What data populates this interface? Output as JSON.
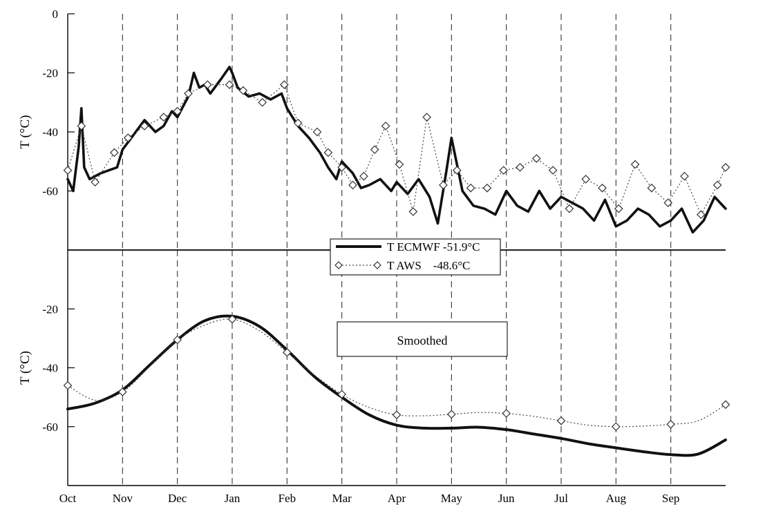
{
  "chart_data": [
    {
      "type": "line",
      "panel": "top",
      "ylabel": "T (°C)",
      "xlabel": "",
      "ylim": [
        -80,
        0
      ],
      "y_ticks": [
        0,
        -20,
        -40,
        -60
      ],
      "x_ticks": [
        "Oct",
        "Nov",
        "Dec",
        "Jan",
        "Feb",
        "Mar",
        "Apr",
        "May",
        "Jun",
        "Jul",
        "Aug",
        "Sep"
      ],
      "x_range_months": [
        0,
        12
      ],
      "grid": "vertical dashed lines at month starts",
      "legend": {
        "placement": "bottom-center",
        "entries": [
          "T ECMWF -51.9°C",
          "T AWS    -48.6°C"
        ]
      },
      "series": [
        {
          "name": "T ECMWF -51.9°C",
          "style": "solid-thick",
          "x": [
            0,
            0.1,
            0.2,
            0.25,
            0.3,
            0.4,
            0.5,
            0.6,
            0.75,
            0.9,
            1.0,
            1.2,
            1.4,
            1.6,
            1.75,
            1.9,
            2.0,
            2.2,
            2.3,
            2.4,
            2.5,
            2.6,
            2.8,
            2.95,
            3.0,
            3.1,
            3.3,
            3.5,
            3.7,
            3.9,
            4.0,
            4.2,
            4.4,
            4.6,
            4.75,
            4.9,
            5.0,
            5.2,
            5.35,
            5.5,
            5.7,
            5.9,
            6.0,
            6.2,
            6.4,
            6.6,
            6.75,
            6.9,
            7.0,
            7.2,
            7.4,
            7.6,
            7.8,
            8.0,
            8.2,
            8.4,
            8.6,
            8.8,
            9.0,
            9.2,
            9.4,
            9.6,
            9.8,
            10.0,
            10.2,
            10.4,
            10.6,
            10.8,
            11.0,
            11.2,
            11.4,
            11.6,
            11.8,
            12.0
          ],
          "y": [
            -56,
            -60,
            -45,
            -32,
            -52,
            -56,
            -55,
            -54,
            -53,
            -52,
            -46,
            -41,
            -36,
            -40,
            -38,
            -33,
            -35,
            -28,
            -20,
            -25,
            -24,
            -27,
            -22,
            -18,
            -20,
            -25,
            -28,
            -27,
            -29,
            -27,
            -32,
            -38,
            -42,
            -47,
            -52,
            -56,
            -50,
            -54,
            -59,
            -58,
            -56,
            -60,
            -57,
            -61,
            -56,
            -62,
            -71,
            -54,
            -42,
            -60,
            -65,
            -66,
            -68,
            -60,
            -65,
            -67,
            -60,
            -66,
            -62,
            -64,
            -66,
            -70,
            -63,
            -72,
            -70,
            -66,
            -68,
            -72,
            -70,
            -66,
            -74,
            -70,
            -62,
            -66
          ]
        },
        {
          "name": "T AWS    -48.6°C",
          "style": "dotted-diamond",
          "x": [
            0,
            0.25,
            0.5,
            0.85,
            1.1,
            1.4,
            1.75,
            2.0,
            2.2,
            2.55,
            2.95,
            3.2,
            3.55,
            3.95,
            4.2,
            4.55,
            4.75,
            5.0,
            5.2,
            5.4,
            5.6,
            5.8,
            6.05,
            6.3,
            6.55,
            6.85,
            7.1,
            7.35,
            7.65,
            7.95,
            8.25,
            8.55,
            8.85,
            9.15,
            9.45,
            9.75,
            10.05,
            10.35,
            10.65,
            10.95,
            11.25,
            11.55,
            11.85,
            12.0
          ],
          "y": [
            -53,
            -38,
            -57,
            -47,
            -42,
            -38,
            -35,
            -33,
            -27,
            -24,
            -24,
            -26,
            -30,
            -24,
            -37,
            -40,
            -47,
            -52,
            -58,
            -55,
            -46,
            -38,
            -51,
            -67,
            -35,
            -58,
            -53,
            -59,
            -59,
            -53,
            -52,
            -49,
            -53,
            -66,
            -56,
            -59,
            -66,
            -51,
            -59,
            -64,
            -55,
            -68,
            -58,
            -52
          ]
        }
      ]
    },
    {
      "type": "line",
      "panel": "bottom",
      "ylabel": "T (°C)",
      "xlabel": "",
      "ylim": [
        -80,
        0
      ],
      "y_ticks": [
        -20,
        -40,
        -60
      ],
      "x_ticks": [
        "Oct",
        "Nov",
        "Dec",
        "Jan",
        "Feb",
        "Mar",
        "Apr",
        "May",
        "Jun",
        "Jul",
        "Aug",
        "Sep"
      ],
      "x_range_months": [
        0,
        12
      ],
      "grid": "vertical dashed lines at month starts",
      "annotation": "Smoothed",
      "series": [
        {
          "name": "T ECMWF -51.9°C",
          "style": "solid-thick",
          "x": [
            0,
            0.5,
            1.0,
            1.5,
            2.0,
            2.5,
            3.0,
            3.5,
            4.0,
            4.5,
            5.0,
            5.5,
            6.0,
            6.5,
            7.0,
            7.5,
            8.0,
            8.5,
            9.0,
            9.5,
            10.0,
            10.5,
            11.0,
            11.5,
            12.0
          ],
          "y": [
            -54,
            -52,
            -47.5,
            -39,
            -30.5,
            -24,
            -22.5,
            -26,
            -34,
            -43,
            -50,
            -56,
            -59.5,
            -60.5,
            -60.5,
            -60.2,
            -61,
            -62.5,
            -64,
            -65.8,
            -67.2,
            -68.5,
            -69.5,
            -69.3,
            -64.5
          ]
        },
        {
          "name": "T AWS    -48.6°C",
          "style": "dotted-diamond",
          "x": [
            0,
            0.5,
            1.0,
            1.5,
            2.0,
            2.5,
            3.0,
            3.5,
            4.0,
            4.5,
            5.0,
            5.5,
            6.0,
            6.5,
            7.0,
            7.5,
            8.0,
            8.5,
            9.0,
            9.5,
            10.0,
            10.5,
            11.0,
            11.5,
            12.0
          ],
          "y": [
            -46,
            -51,
            -48.2,
            -39.5,
            -30.5,
            -25.5,
            -23.5,
            -27.5,
            -34.8,
            -42.5,
            -49,
            -53.5,
            -56,
            -56.3,
            -55.8,
            -55.2,
            -55.5,
            -56.5,
            -58,
            -59.5,
            -60,
            -59.8,
            -59.2,
            -58,
            -52.5
          ]
        }
      ]
    }
  ]
}
